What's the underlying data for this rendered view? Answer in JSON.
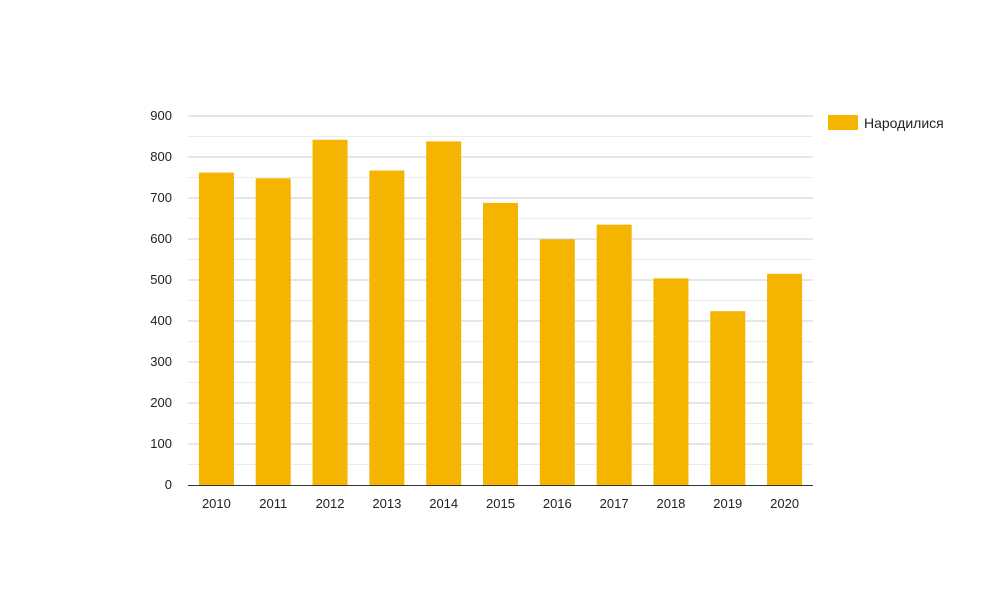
{
  "chart_data": {
    "type": "bar",
    "categories": [
      "2010",
      "2011",
      "2012",
      "2013",
      "2014",
      "2015",
      "2016",
      "2017",
      "2018",
      "2019",
      "2020"
    ],
    "series": [
      {
        "name": "Народилися",
        "color": "#f4b400",
        "values": [
          762,
          748,
          842,
          767,
          838,
          688,
          599,
          635,
          504,
          424,
          515
        ]
      }
    ],
    "ylim": [
      0,
      900
    ],
    "yticks": [
      "0",
      "100",
      "200",
      "300",
      "400",
      "500",
      "600",
      "700",
      "800",
      "900"
    ],
    "grid": true,
    "legend_position": "right"
  }
}
